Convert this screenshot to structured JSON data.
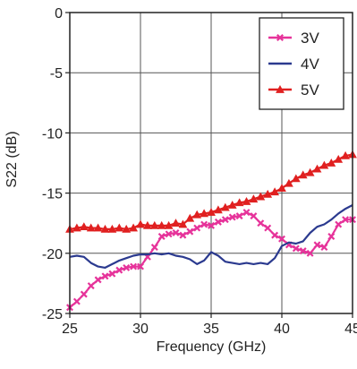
{
  "chart_data": {
    "type": "line",
    "title": "",
    "xlabel": "Frequency (GHz)",
    "ylabel": "S22 (dB)",
    "xlim": [
      25,
      45
    ],
    "ylim": [
      -25,
      0
    ],
    "xticks": [
      25,
      30,
      35,
      40,
      45
    ],
    "yticks": [
      0,
      -5,
      -10,
      -15,
      -20,
      -25
    ],
    "xtick_labels": [
      "25",
      "30",
      "35",
      "40",
      "45"
    ],
    "ytick_labels": [
      "0",
      "-5",
      "-10",
      "-15",
      "-20",
      "-25"
    ],
    "grid": true,
    "legend_position": "top-right",
    "series": [
      {
        "name": "3V",
        "color": "#e6339a",
        "marker": "x",
        "x": [
          25,
          25.5,
          26,
          26.5,
          27,
          27.5,
          28,
          28.5,
          29,
          29.5,
          30,
          30.5,
          31,
          31.5,
          32,
          32.5,
          33,
          33.5,
          34,
          34.5,
          35,
          35.5,
          36,
          36.5,
          37,
          37.5,
          38,
          38.5,
          39,
          39.5,
          40,
          40.5,
          41,
          41.5,
          42,
          42.5,
          43,
          43.5,
          44,
          44.5,
          45
        ],
        "y": [
          -24.5,
          -24.0,
          -23.4,
          -22.7,
          -22.2,
          -21.9,
          -21.7,
          -21.4,
          -21.2,
          -21.1,
          -21.1,
          -20.3,
          -19.5,
          -18.6,
          -18.4,
          -18.3,
          -18.5,
          -18.2,
          -17.9,
          -17.6,
          -17.7,
          -17.4,
          -17.2,
          -17.0,
          -16.9,
          -16.6,
          -16.9,
          -17.5,
          -17.9,
          -18.5,
          -18.8,
          -19.3,
          -19.6,
          -19.8,
          -20.0,
          -19.3,
          -19.5,
          -18.6,
          -17.6,
          -17.2,
          -17.2
        ]
      },
      {
        "name": "4V",
        "color": "#2b3a8f",
        "marker": "none",
        "x": [
          25,
          25.5,
          26,
          26.5,
          27,
          27.5,
          28,
          28.5,
          29,
          29.5,
          30,
          30.5,
          31,
          31.5,
          32,
          32.5,
          33,
          33.5,
          34,
          34.5,
          35,
          35.5,
          36,
          36.5,
          37,
          37.5,
          38,
          38.5,
          39,
          39.5,
          40,
          40.5,
          41,
          41.5,
          42,
          42.5,
          43,
          43.5,
          44,
          44.5,
          45
        ],
        "y": [
          -20.3,
          -20.2,
          -20.3,
          -20.8,
          -21.1,
          -21.2,
          -20.9,
          -20.6,
          -20.4,
          -20.2,
          -20.1,
          -20.1,
          -20.0,
          -20.1,
          -20.0,
          -20.2,
          -20.3,
          -20.5,
          -20.9,
          -20.6,
          -19.9,
          -20.2,
          -20.7,
          -20.8,
          -20.9,
          -20.8,
          -20.9,
          -20.8,
          -20.9,
          -20.4,
          -19.4,
          -19.1,
          -19.2,
          -19.0,
          -18.3,
          -17.8,
          -17.6,
          -17.2,
          -16.7,
          -16.3,
          -16.0
        ]
      },
      {
        "name": "5V",
        "color": "#e02020",
        "marker": "triangle",
        "x": [
          25,
          25.5,
          26,
          26.5,
          27,
          27.5,
          28,
          28.5,
          29,
          29.5,
          30,
          30.5,
          31,
          31.5,
          32,
          32.5,
          33,
          33.5,
          34,
          34.5,
          35,
          35.5,
          36,
          36.5,
          37,
          37.5,
          38,
          38.5,
          39,
          39.5,
          40,
          40.5,
          41,
          41.5,
          42,
          42.5,
          43,
          43.5,
          44,
          44.5,
          45
        ],
        "y": [
          -18.0,
          -17.9,
          -17.8,
          -17.9,
          -17.9,
          -18.0,
          -18.0,
          -17.9,
          -18.0,
          -17.9,
          -17.6,
          -17.7,
          -17.7,
          -17.7,
          -17.7,
          -17.5,
          -17.6,
          -17.1,
          -16.8,
          -16.7,
          -16.6,
          -16.4,
          -16.2,
          -16.0,
          -15.8,
          -15.7,
          -15.5,
          -15.3,
          -15.1,
          -14.9,
          -14.6,
          -14.2,
          -13.8,
          -13.5,
          -13.3,
          -13.0,
          -12.7,
          -12.5,
          -12.2,
          -11.9,
          -11.8
        ]
      }
    ]
  }
}
